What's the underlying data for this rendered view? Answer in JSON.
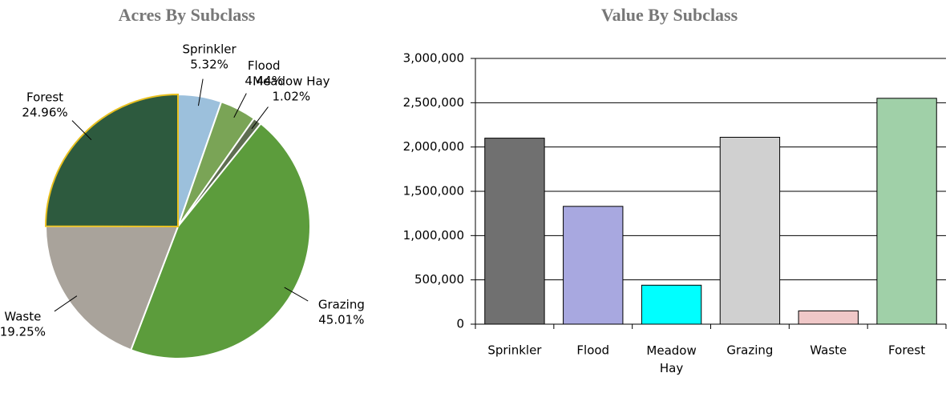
{
  "chart_data": [
    {
      "type": "pie",
      "title": "Acres By Subclass",
      "categories": [
        "Sprinkler",
        "Flood",
        "Meadow Hay",
        "Grazing",
        "Waste",
        "Forest"
      ],
      "values": [
        5.32,
        4.44,
        1.02,
        45.01,
        19.25,
        24.96
      ],
      "value_labels": [
        "5.32%",
        "4.44%",
        "1.02%",
        "45.01%",
        "19.25%",
        "24.96%"
      ],
      "colors": [
        "#9cc0dc",
        "#7aa456",
        "#5f6e52",
        "#5c9c3c",
        "#a9a39b",
        "#2d5a3e"
      ]
    },
    {
      "type": "bar",
      "title": "Value By Subclass",
      "categories": [
        "Sprinkler",
        "Flood",
        "Meadow Hay",
        "Grazing",
        "Waste",
        "Forest"
      ],
      "values": [
        2100000,
        1330000,
        440000,
        2110000,
        150000,
        2550000
      ],
      "colors": [
        "#707070",
        "#a8a8e0",
        "#00ffff",
        "#d0d0d0",
        "#f0c8c8",
        "#a0d0a8"
      ],
      "ylim": [
        0,
        3000000
      ],
      "yticks": [
        0,
        {
          "value": 500000,
          "label": "500,000"
        },
        {
          "value": 1000000,
          "label": "1,000,000"
        },
        {
          "value": 1500000,
          "label": "1,500,000"
        },
        {
          "value": 2000000,
          "label": "2,000,000"
        },
        {
          "value": 2500000,
          "label": "2,500,000"
        },
        {
          "value": 3000000,
          "label": "3,000,000"
        }
      ],
      "grid": true
    }
  ]
}
